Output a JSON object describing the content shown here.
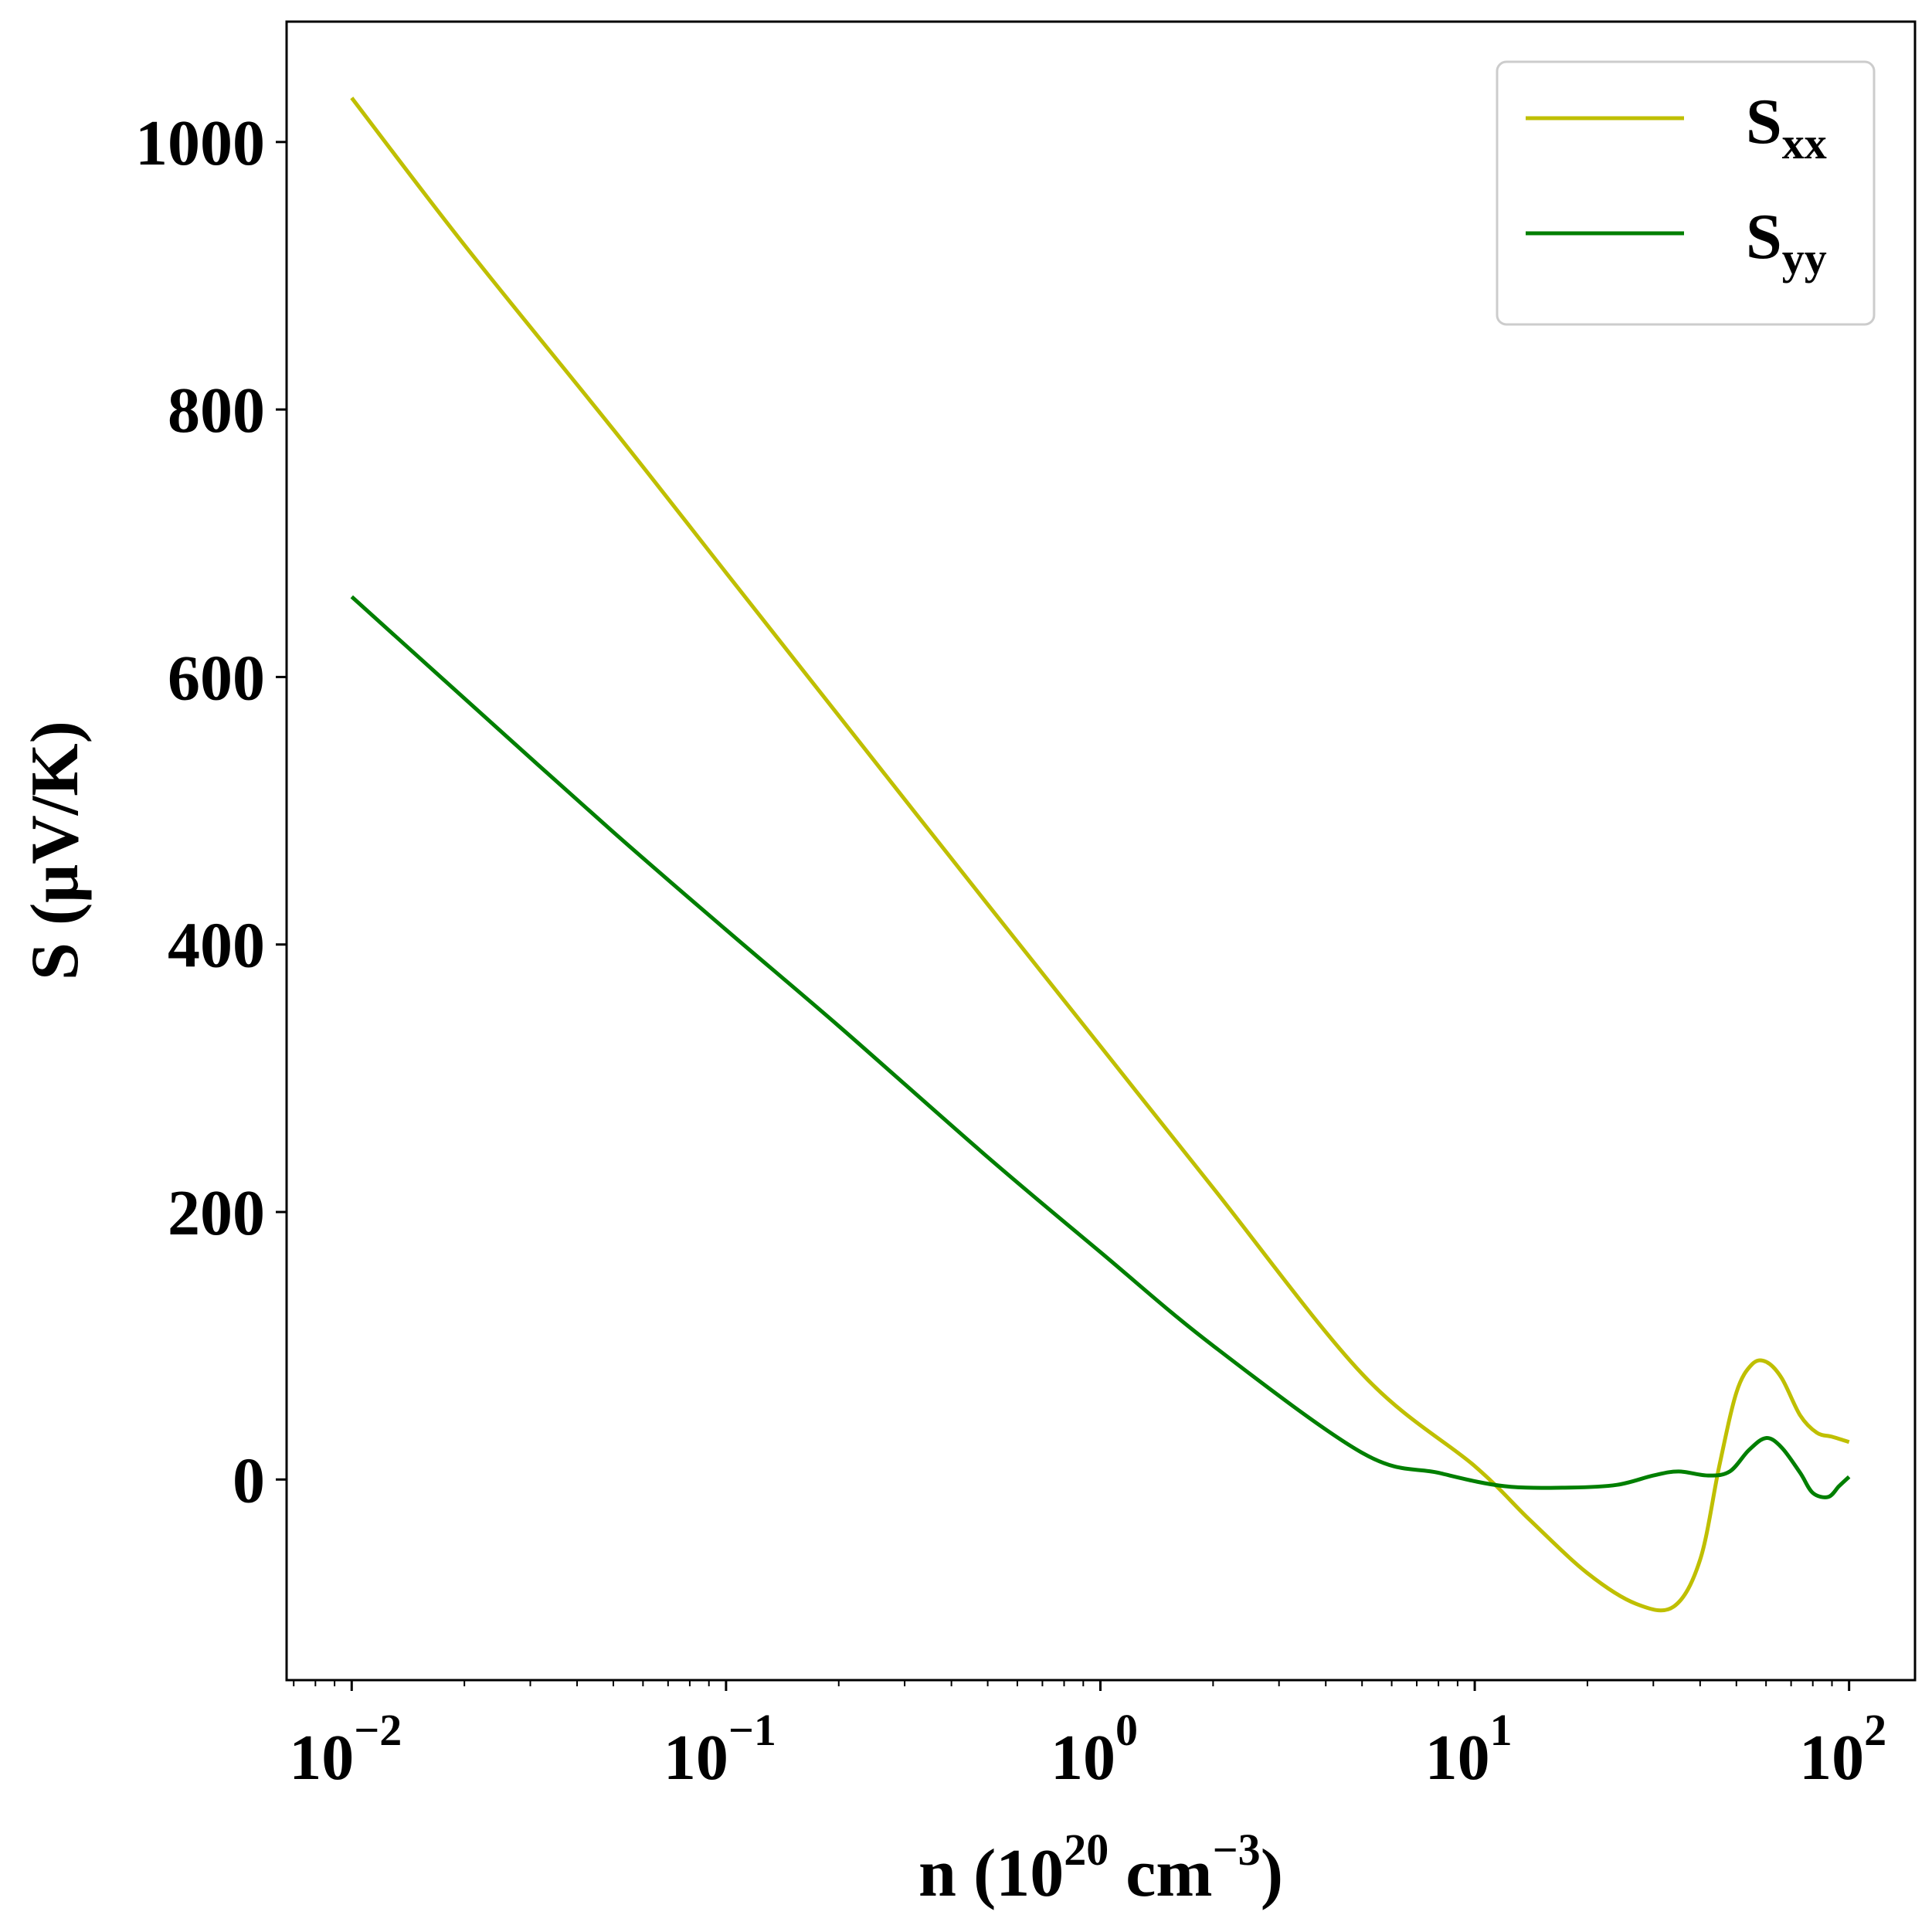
{
  "chart_data": {
    "type": "line",
    "xscale": "log",
    "xlim": [
      0.0067,
      150
    ],
    "ylim": [
      -150,
      1090
    ],
    "xlabel": {
      "prefix": "n (10",
      "sup1": "20",
      "mid": " cm",
      "sup2": "−3",
      "suffix": ")"
    },
    "ylabel": "S (μV/K)",
    "x_ticks": [
      {
        "base": "10",
        "exp": "−2",
        "value": 0.01
      },
      {
        "base": "10",
        "exp": "−1",
        "value": 0.1
      },
      {
        "base": "10",
        "exp": "0",
        "value": 1
      },
      {
        "base": "10",
        "exp": "1",
        "value": 10
      },
      {
        "base": "10",
        "exp": "2",
        "value": 100
      }
    ],
    "y_ticks": [
      {
        "label": "0",
        "value": 0
      },
      {
        "label": "200",
        "value": 200
      },
      {
        "label": "400",
        "value": 400
      },
      {
        "label": "600",
        "value": 600
      },
      {
        "label": "800",
        "value": 800
      },
      {
        "label": "1000",
        "value": 1000
      }
    ],
    "grid": false,
    "legend_position": "top-right",
    "series": [
      {
        "name": "S",
        "subscript": "xx",
        "color": "#bfbf00",
        "points": [
          [
            0.01,
            1033
          ],
          [
            0.02,
            923
          ],
          [
            0.05,
            785
          ],
          [
            0.1,
            678
          ],
          [
            0.2,
            571
          ],
          [
            0.5,
            430
          ],
          [
            1,
            324
          ],
          [
            2,
            218
          ],
          [
            5,
            79
          ],
          [
            10,
            10
          ],
          [
            14,
            -30
          ],
          [
            20,
            -70
          ],
          [
            27,
            -93
          ],
          [
            34,
            -95
          ],
          [
            40,
            -60
          ],
          [
            45,
            10
          ],
          [
            50,
            65
          ],
          [
            55,
            86
          ],
          [
            60,
            88
          ],
          [
            66,
            76
          ],
          [
            74,
            48
          ],
          [
            82,
            35
          ],
          [
            90,
            32
          ],
          [
            100,
            28
          ]
        ]
      },
      {
        "name": "S",
        "subscript": "yy",
        "color": "#007f00",
        "points": [
          [
            0.01,
            660
          ],
          [
            0.02,
            584
          ],
          [
            0.05,
            484
          ],
          [
            0.1,
            411
          ],
          [
            0.2,
            339
          ],
          [
            0.5,
            241
          ],
          [
            1,
            170
          ],
          [
            2,
            100
          ],
          [
            5,
            20
          ],
          [
            8,
            5
          ],
          [
            12,
            -5
          ],
          [
            18,
            -6
          ],
          [
            24,
            -4
          ],
          [
            30,
            3
          ],
          [
            35,
            6
          ],
          [
            42,
            3
          ],
          [
            48,
            6
          ],
          [
            54,
            22
          ],
          [
            60,
            31
          ],
          [
            66,
            24
          ],
          [
            74,
            5
          ],
          [
            80,
            -10
          ],
          [
            88,
            -13
          ],
          [
            94,
            -5
          ],
          [
            100,
            2
          ]
        ]
      }
    ]
  }
}
